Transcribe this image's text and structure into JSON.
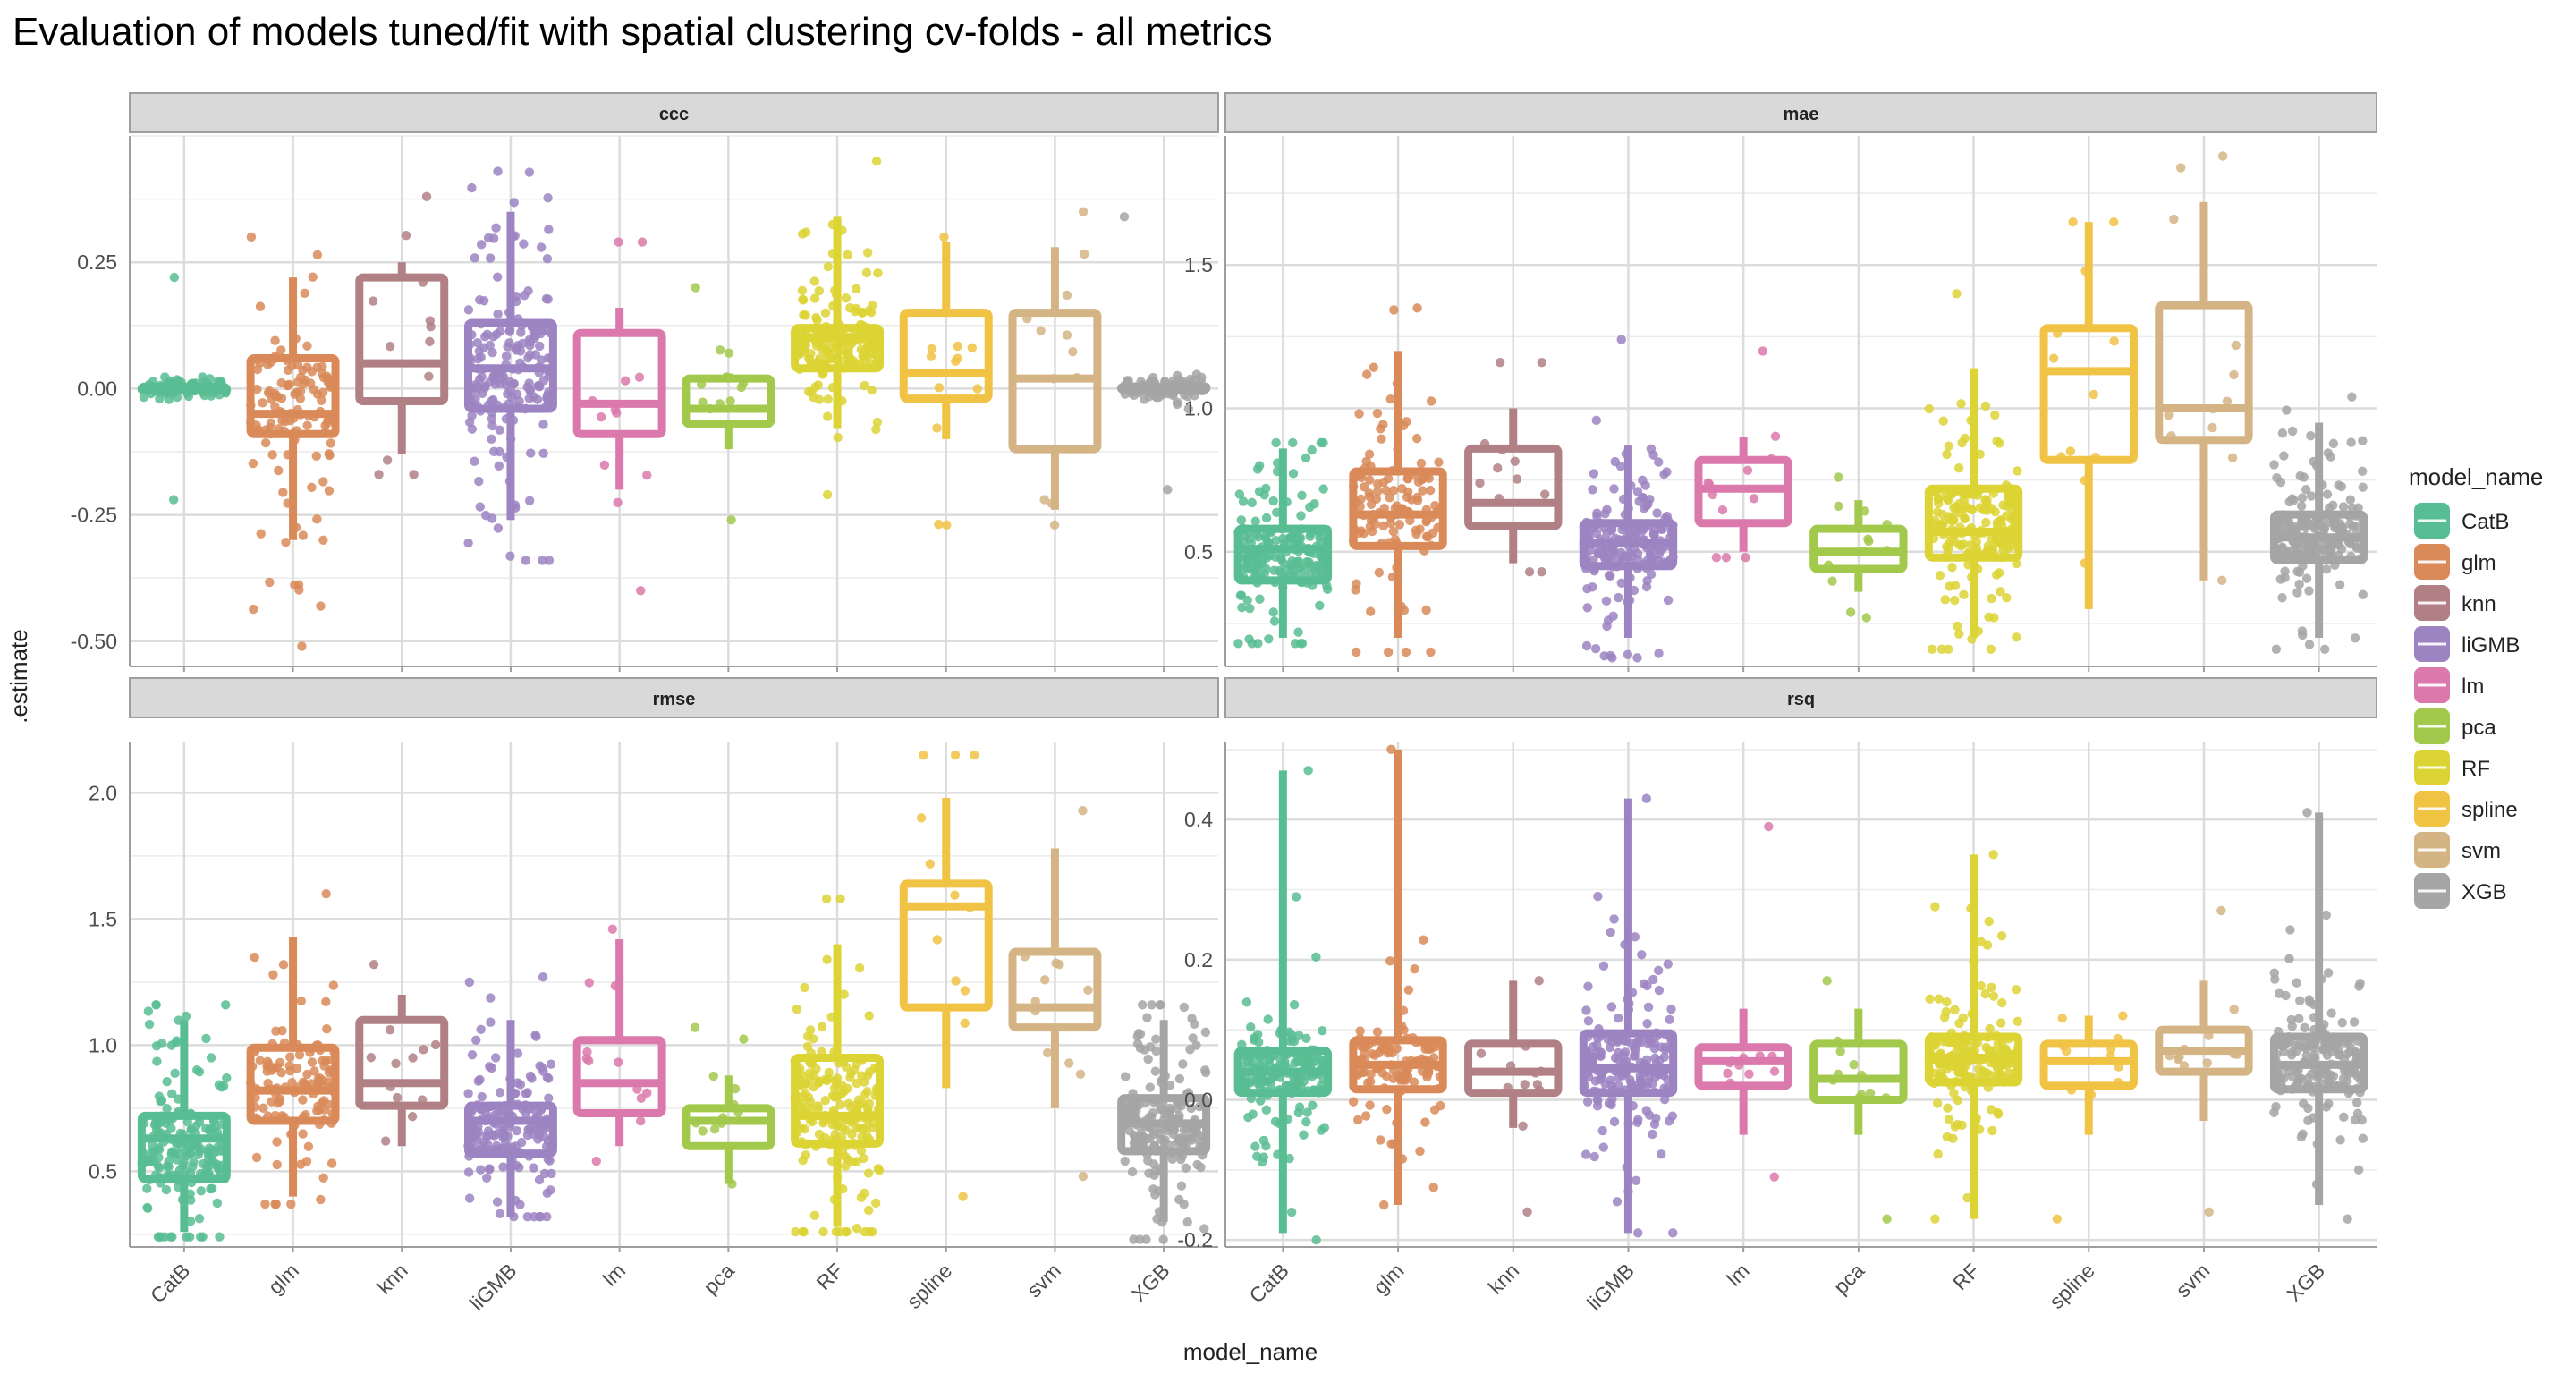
{
  "title": "Evaluation of models tuned/fit with spatial clustering cv-folds - all metrics",
  "x_axis_label": "model_name",
  "y_axis_label": ".estimate",
  "legend": {
    "title": "model_name",
    "position": "right",
    "items": [
      {
        "name": "CatB",
        "color": "#59BD93"
      },
      {
        "name": "glm",
        "color": "#D98A58"
      },
      {
        "name": "knn",
        "color": "#B08084"
      },
      {
        "name": "liGMB",
        "color": "#9C84C2"
      },
      {
        "name": "lm",
        "color": "#DB79AC"
      },
      {
        "name": "pca",
        "color": "#A2C94C"
      },
      {
        "name": "RF",
        "color": "#DCD434"
      },
      {
        "name": "spline",
        "color": "#F1C345"
      },
      {
        "name": "svm",
        "color": "#D4B485"
      },
      {
        "name": "XGB",
        "color": "#A5A5A5"
      }
    ]
  },
  "chart_data": [
    {
      "type": "boxplot",
      "panel": "ccc",
      "categories": [
        "CatB",
        "glm",
        "knn",
        "liGMB",
        "lm",
        "pca",
        "RF",
        "spline",
        "svm",
        "XGB"
      ],
      "ylim": [
        -0.55,
        0.5
      ],
      "yticks": [
        -0.5,
        -0.25,
        0.0,
        0.25
      ],
      "ytick_labels": [
        "-0.50",
        "-0.25",
        "0.00",
        "0.25"
      ],
      "grid": true,
      "boxes": [
        {
          "category": "CatB",
          "q1": -0.003,
          "median": 0.0,
          "q3": 0.003,
          "whisker_low": -0.005,
          "whisker_high": 0.005,
          "n": 200,
          "range": [
            -0.22,
            0.22
          ]
        },
        {
          "category": "glm",
          "q1": -0.09,
          "median": -0.05,
          "q3": 0.06,
          "whisker_low": -0.3,
          "whisker_high": 0.22,
          "n": 120,
          "range": [
            -0.51,
            0.3
          ]
        },
        {
          "category": "knn",
          "q1": -0.025,
          "median": 0.05,
          "q3": 0.22,
          "whisker_low": -0.13,
          "whisker_high": 0.25,
          "n": 12,
          "range": [
            -0.17,
            0.38
          ]
        },
        {
          "category": "liGMB",
          "q1": -0.04,
          "median": 0.04,
          "q3": 0.13,
          "whisker_low": -0.26,
          "whisker_high": 0.35,
          "n": 200,
          "range": [
            -0.34,
            0.43
          ]
        },
        {
          "category": "lm",
          "q1": -0.09,
          "median": -0.03,
          "q3": 0.11,
          "whisker_low": -0.2,
          "whisker_high": 0.16,
          "n": 12,
          "range": [
            -0.4,
            0.29
          ]
        },
        {
          "category": "pca",
          "q1": -0.07,
          "median": -0.04,
          "q3": 0.02,
          "whisker_low": -0.12,
          "whisker_high": 0.03,
          "n": 12,
          "range": [
            -0.26,
            0.2
          ]
        },
        {
          "category": "RF",
          "q1": 0.04,
          "median": 0.1,
          "q3": 0.12,
          "whisker_low": -0.08,
          "whisker_high": 0.34,
          "n": 200,
          "range": [
            -0.21,
            0.45
          ]
        },
        {
          "category": "spline",
          "q1": -0.02,
          "median": 0.03,
          "q3": 0.15,
          "whisker_low": -0.1,
          "whisker_high": 0.29,
          "n": 12,
          "range": [
            -0.27,
            0.3
          ]
        },
        {
          "category": "svm",
          "q1": -0.12,
          "median": 0.02,
          "q3": 0.15,
          "whisker_low": -0.24,
          "whisker_high": 0.28,
          "n": 12,
          "range": [
            -0.27,
            0.35
          ]
        },
        {
          "category": "XGB",
          "q1": -0.003,
          "median": 0.0,
          "q3": 0.003,
          "whisker_low": -0.005,
          "whisker_high": 0.005,
          "n": 200,
          "range": [
            -0.2,
            0.34
          ]
        }
      ]
    },
    {
      "type": "boxplot",
      "panel": "mae",
      "categories": [
        "CatB",
        "glm",
        "knn",
        "liGMB",
        "lm",
        "pca",
        "RF",
        "spline",
        "svm",
        "XGB"
      ],
      "ylim": [
        0.1,
        1.95
      ],
      "yticks": [
        0.5,
        1.0,
        1.5
      ],
      "ytick_labels": [
        "0.5",
        "1.0",
        "1.5"
      ],
      "grid": true,
      "boxes": [
        {
          "category": "CatB",
          "q1": 0.4,
          "median": 0.51,
          "q3": 0.58,
          "whisker_low": 0.2,
          "whisker_high": 0.86,
          "n": 200,
          "range": [
            0.18,
            0.88
          ]
        },
        {
          "category": "glm",
          "q1": 0.52,
          "median": 0.63,
          "q3": 0.78,
          "whisker_low": 0.2,
          "whisker_high": 1.2,
          "n": 120,
          "range": [
            0.15,
            1.35
          ]
        },
        {
          "category": "knn",
          "q1": 0.59,
          "median": 0.67,
          "q3": 0.86,
          "whisker_low": 0.46,
          "whisker_high": 1.0,
          "n": 12,
          "range": [
            0.43,
            1.16
          ]
        },
        {
          "category": "liGMB",
          "q1": 0.45,
          "median": 0.53,
          "q3": 0.6,
          "whisker_low": 0.2,
          "whisker_high": 0.87,
          "n": 200,
          "range": [
            0.13,
            1.24
          ]
        },
        {
          "category": "lm",
          "q1": 0.6,
          "median": 0.72,
          "q3": 0.82,
          "whisker_low": 0.5,
          "whisker_high": 0.9,
          "n": 12,
          "range": [
            0.48,
            1.2
          ]
        },
        {
          "category": "pca",
          "q1": 0.44,
          "median": 0.5,
          "q3": 0.58,
          "whisker_low": 0.36,
          "whisker_high": 0.68,
          "n": 12,
          "range": [
            0.27,
            0.76
          ]
        },
        {
          "category": "RF",
          "q1": 0.48,
          "median": 0.57,
          "q3": 0.72,
          "whisker_low": 0.2,
          "whisker_high": 1.14,
          "n": 200,
          "range": [
            0.16,
            1.4
          ]
        },
        {
          "category": "spline",
          "q1": 0.82,
          "median": 1.13,
          "q3": 1.28,
          "whisker_low": 0.3,
          "whisker_high": 1.65,
          "n": 12,
          "range": [
            0.46,
            1.65
          ]
        },
        {
          "category": "svm",
          "q1": 0.89,
          "median": 1.0,
          "q3": 1.36,
          "whisker_low": 0.4,
          "whisker_high": 1.72,
          "n": 12,
          "range": [
            0.4,
            1.88
          ]
        },
        {
          "category": "XGB",
          "q1": 0.47,
          "median": 0.55,
          "q3": 0.63,
          "whisker_low": 0.2,
          "whisker_high": 0.95,
          "n": 200,
          "range": [
            0.16,
            1.04
          ]
        }
      ]
    },
    {
      "type": "boxplot",
      "panel": "rmse",
      "categories": [
        "CatB",
        "glm",
        "knn",
        "liGMB",
        "lm",
        "pca",
        "RF",
        "spline",
        "svm",
        "XGB"
      ],
      "ylim": [
        0.2,
        2.2
      ],
      "yticks": [
        0.5,
        1.0,
        1.5,
        2.0
      ],
      "ytick_labels": [
        "0.5",
        "1.0",
        "1.5",
        "2.0"
      ],
      "grid": true,
      "boxes": [
        {
          "category": "CatB",
          "q1": 0.47,
          "median": 0.63,
          "q3": 0.72,
          "whisker_low": 0.26,
          "whisker_high": 1.1,
          "n": 200,
          "range": [
            0.24,
            1.16
          ]
        },
        {
          "category": "glm",
          "q1": 0.7,
          "median": 0.82,
          "q3": 0.99,
          "whisker_low": 0.4,
          "whisker_high": 1.43,
          "n": 120,
          "range": [
            0.37,
            1.6
          ]
        },
        {
          "category": "knn",
          "q1": 0.76,
          "median": 0.85,
          "q3": 1.1,
          "whisker_low": 0.6,
          "whisker_high": 1.2,
          "n": 12,
          "range": [
            0.62,
            1.32
          ]
        },
        {
          "category": "liGMB",
          "q1": 0.57,
          "median": 0.7,
          "q3": 0.76,
          "whisker_low": 0.32,
          "whisker_high": 1.1,
          "n": 200,
          "range": [
            0.32,
            1.27
          ]
        },
        {
          "category": "lm",
          "q1": 0.73,
          "median": 0.85,
          "q3": 1.02,
          "whisker_low": 0.6,
          "whisker_high": 1.42,
          "n": 12,
          "range": [
            0.54,
            1.46
          ]
        },
        {
          "category": "pca",
          "q1": 0.6,
          "median": 0.7,
          "q3": 0.75,
          "whisker_low": 0.45,
          "whisker_high": 0.88,
          "n": 12,
          "range": [
            0.45,
            1.07
          ]
        },
        {
          "category": "RF",
          "q1": 0.61,
          "median": 0.72,
          "q3": 0.95,
          "whisker_low": 0.28,
          "whisker_high": 1.4,
          "n": 200,
          "range": [
            0.26,
            1.58
          ]
        },
        {
          "category": "spline",
          "q1": 1.15,
          "median": 1.55,
          "q3": 1.64,
          "whisker_low": 0.83,
          "whisker_high": 1.98,
          "n": 12,
          "range": [
            0.4,
            2.15
          ]
        },
        {
          "category": "svm",
          "q1": 1.07,
          "median": 1.15,
          "q3": 1.37,
          "whisker_low": 0.75,
          "whisker_high": 1.78,
          "n": 12,
          "range": [
            0.48,
            1.93
          ]
        },
        {
          "category": "XGB",
          "q1": 0.58,
          "median": 0.69,
          "q3": 0.79,
          "whisker_low": 0.3,
          "whisker_high": 1.1,
          "n": 200,
          "range": [
            0.23,
            1.16
          ]
        }
      ]
    },
    {
      "type": "boxplot",
      "panel": "rsq",
      "categories": [
        "CatB",
        "glm",
        "knn",
        "liGMB",
        "lm",
        "pca",
        "RF",
        "spline",
        "svm",
        "XGB"
      ],
      "ylim": [
        -0.21,
        0.51
      ],
      "yticks": [
        -0.2,
        0.0,
        0.2,
        0.4
      ],
      "ytick_labels": [
        "-0.2",
        "0.0",
        "0.2",
        "0.4"
      ],
      "grid": true,
      "boxes": [
        {
          "category": "CatB",
          "q1": 0.01,
          "median": 0.04,
          "q3": 0.07,
          "whisker_low": -0.19,
          "whisker_high": 0.47,
          "n": 200,
          "range": [
            -0.2,
            0.47
          ]
        },
        {
          "category": "glm",
          "q1": 0.015,
          "median": 0.05,
          "q3": 0.085,
          "whisker_low": -0.15,
          "whisker_high": 0.5,
          "n": 120,
          "range": [
            -0.15,
            0.5
          ]
        },
        {
          "category": "knn",
          "q1": 0.01,
          "median": 0.04,
          "q3": 0.08,
          "whisker_low": -0.04,
          "whisker_high": 0.17,
          "n": 12,
          "range": [
            -0.16,
            0.17
          ]
        },
        {
          "category": "liGMB",
          "q1": 0.01,
          "median": 0.045,
          "q3": 0.095,
          "whisker_low": -0.19,
          "whisker_high": 0.43,
          "n": 200,
          "range": [
            -0.19,
            0.43
          ]
        },
        {
          "category": "lm",
          "q1": 0.02,
          "median": 0.055,
          "q3": 0.075,
          "whisker_low": -0.05,
          "whisker_high": 0.13,
          "n": 12,
          "range": [
            -0.11,
            0.39
          ]
        },
        {
          "category": "pca",
          "q1": 0.0,
          "median": 0.03,
          "q3": 0.08,
          "whisker_low": -0.05,
          "whisker_high": 0.13,
          "n": 12,
          "range": [
            -0.17,
            0.17
          ]
        },
        {
          "category": "RF",
          "q1": 0.025,
          "median": 0.06,
          "q3": 0.09,
          "whisker_low": -0.17,
          "whisker_high": 0.35,
          "n": 200,
          "range": [
            -0.17,
            0.35
          ]
        },
        {
          "category": "spline",
          "q1": 0.02,
          "median": 0.055,
          "q3": 0.08,
          "whisker_low": -0.05,
          "whisker_high": 0.12,
          "n": 12,
          "range": [
            -0.17,
            0.12
          ]
        },
        {
          "category": "svm",
          "q1": 0.04,
          "median": 0.07,
          "q3": 0.1,
          "whisker_low": -0.03,
          "whisker_high": 0.17,
          "n": 12,
          "range": [
            -0.16,
            0.27
          ]
        },
        {
          "category": "XGB",
          "q1": 0.015,
          "median": 0.05,
          "q3": 0.09,
          "whisker_low": -0.15,
          "whisker_high": 0.41,
          "n": 200,
          "range": [
            -0.17,
            0.41
          ]
        }
      ]
    }
  ]
}
